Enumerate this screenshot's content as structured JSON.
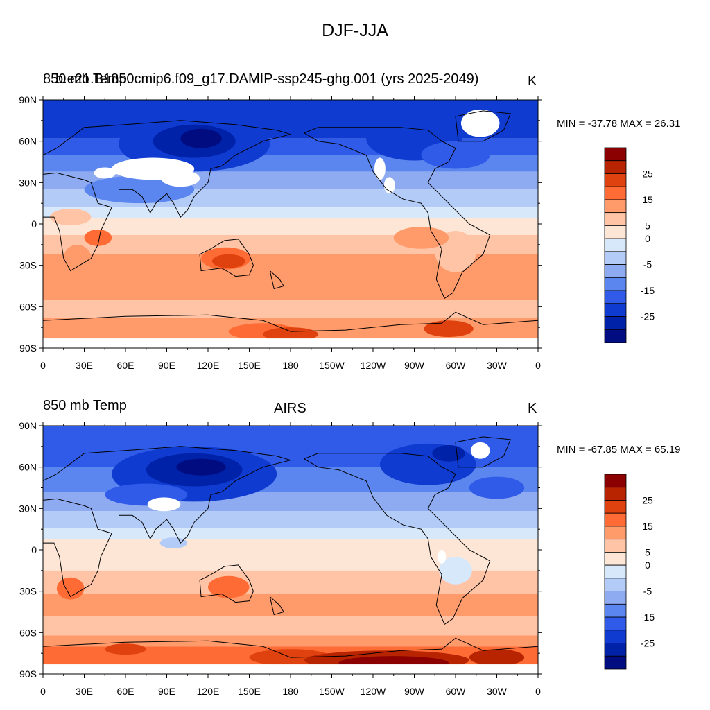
{
  "title": "DJF-JJA",
  "panels": [
    {
      "left_label": "850 mb Temp",
      "left_label_overlap": "b.e21.B1850cmip6.f09_g17.DAMIP-ssp245-ghg.001 (yrs 2025-2049)",
      "center_label": "",
      "units": "K",
      "minmax": "MIN = -37.78 MAX =  26.31"
    },
    {
      "left_label": "850 mb Temp",
      "center_label": "AIRS",
      "units": "K",
      "minmax": "MIN = -67.85 MAX =  65.19"
    }
  ],
  "axes": {
    "lat_labels": [
      "90N",
      "60N",
      "30N",
      "0",
      "30S",
      "60S",
      "90S"
    ],
    "lon_labels": [
      "0",
      "30E",
      "60E",
      "90E",
      "120E",
      "150E",
      "180",
      "150W",
      "120W",
      "90W",
      "60W",
      "30W",
      "0"
    ]
  },
  "colorbar": {
    "labels": [
      "25",
      "15",
      "5",
      "0",
      "-5",
      "-15",
      "-25"
    ],
    "colors": [
      "#8b0000",
      "#b82400",
      "#e0420f",
      "#ff6b35",
      "#ff9a6b",
      "#ffc4a6",
      "#fde6d6",
      "#d8e8fb",
      "#b3ccf7",
      "#8eaaf0",
      "#5b86ef",
      "#2f5be8",
      "#0f3bd0",
      "#0022a8",
      "#000c80"
    ]
  },
  "chart_data": {
    "type": "heatmap",
    "title": "DJF-JJA",
    "variable": "850 mb Temp",
    "units": "K",
    "panels": [
      {
        "name": "b.e21.B1850cmip6.f09_g17.DAMIP-ssp245-ghg.001 (yrs 2025-2049)",
        "min": -37.78,
        "max": 26.31
      },
      {
        "name": "AIRS",
        "min": -67.85,
        "max": 65.19
      }
    ],
    "contour_levels": [
      -25,
      -15,
      -5,
      0,
      5,
      15,
      25
    ],
    "x_range": [
      0,
      360
    ],
    "y_range": [
      -90,
      90
    ]
  }
}
